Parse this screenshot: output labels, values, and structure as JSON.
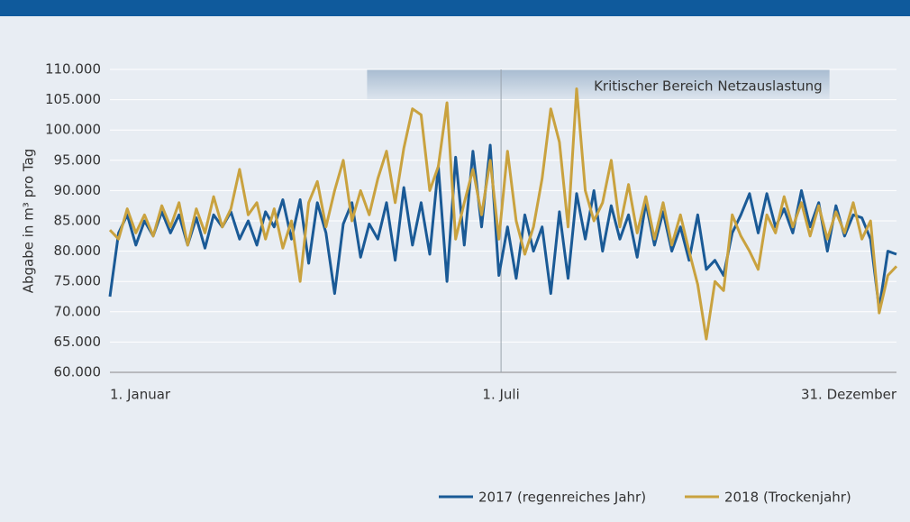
{
  "chart_data": {
    "type": "line",
    "y_label": "Abgabe in m³ pro Tag",
    "annotation": {
      "text": "Kritischer Bereich Netzauslastung",
      "x_range": [
        120,
        334
      ],
      "y_range": [
        105000,
        110000
      ]
    },
    "x": [
      1,
      5,
      9,
      13,
      17,
      21,
      25,
      29,
      33,
      37,
      41,
      45,
      49,
      53,
      57,
      61,
      65,
      69,
      73,
      77,
      81,
      85,
      89,
      93,
      97,
      101,
      105,
      109,
      113,
      117,
      121,
      125,
      129,
      133,
      137,
      141,
      145,
      149,
      153,
      157,
      161,
      165,
      169,
      173,
      177,
      181,
      185,
      189,
      193,
      197,
      201,
      205,
      209,
      213,
      217,
      221,
      225,
      229,
      233,
      237,
      241,
      245,
      249,
      253,
      257,
      261,
      265,
      269,
      273,
      277,
      281,
      285,
      289,
      293,
      297,
      301,
      305,
      309,
      313,
      317,
      321,
      325,
      329,
      333,
      337,
      341,
      345,
      349,
      353,
      357,
      361,
      365
    ],
    "xlim": [
      1,
      365
    ],
    "xticks": [
      {
        "value": 1,
        "label": "1. Januar"
      },
      {
        "value": 182,
        "label": "1. Juli"
      },
      {
        "value": 365,
        "label": "31. Dezember"
      }
    ],
    "ylim": [
      60000,
      110000
    ],
    "yticks": [
      {
        "value": 60000,
        "label": "60.000"
      },
      {
        "value": 65000,
        "label": "65.000"
      },
      {
        "value": 70000,
        "label": "70.000"
      },
      {
        "value": 75000,
        "label": "75.000"
      },
      {
        "value": 80000,
        "label": "80.000"
      },
      {
        "value": 85000,
        "label": "85.000"
      },
      {
        "value": 90000,
        "label": "90.000"
      },
      {
        "value": 95000,
        "label": "95.000"
      },
      {
        "value": 100000,
        "label": "100.000"
      },
      {
        "value": 105000,
        "label": "105.000"
      },
      {
        "value": 110000,
        "label": "110.000"
      }
    ],
    "grid": true,
    "series": [
      {
        "name": "2017 (regenreiches Jahr)",
        "color": "#1a5a96",
        "values": [
          72500,
          83000,
          86000,
          81000,
          85000,
          82500,
          86500,
          83000,
          86000,
          81000,
          85500,
          80500,
          86000,
          84000,
          86500,
          82000,
          85000,
          81000,
          86500,
          84000,
          88500,
          82000,
          88500,
          78000,
          88000,
          83000,
          73000,
          84500,
          88000,
          79000,
          84500,
          82000,
          88000,
          78500,
          90500,
          81000,
          88000,
          79500,
          94000,
          75000,
          95500,
          81000,
          96500,
          84000,
          97500,
          76000,
          84000,
          75500,
          86000,
          80000,
          84000,
          73000,
          86500,
          75500,
          89500,
          82000,
          90000,
          80000,
          87500,
          82000,
          86000,
          79000,
          88000,
          81000,
          86500,
          80000,
          84000,
          78500,
          86000,
          77000,
          78500,
          76000,
          83000,
          86000,
          89500,
          83000,
          89500,
          84000,
          87000,
          83000,
          90000,
          84000,
          88000,
          80000,
          87500,
          82500,
          86000,
          85500,
          82000,
          70500,
          80000,
          79500
        ]
      },
      {
        "name": "2018 (Trockenjahr)",
        "color": "#c9a23f",
        "values": [
          83500,
          82000,
          87000,
          83000,
          86000,
          82500,
          87500,
          84000,
          88000,
          81000,
          87000,
          83000,
          89000,
          84000,
          87000,
          93500,
          86000,
          88000,
          82000,
          87000,
          80500,
          85000,
          75000,
          88000,
          91500,
          84000,
          90000,
          95000,
          85000,
          90000,
          86000,
          92000,
          96500,
          88000,
          97000,
          103500,
          102500,
          90000,
          94000,
          104500,
          82000,
          88000,
          93500,
          86000,
          95000,
          82000,
          96500,
          85000,
          79500,
          84000,
          92000,
          103500,
          98000,
          84000,
          106800,
          90000,
          85000,
          88000,
          95000,
          84000,
          91000,
          83000,
          89000,
          82000,
          88000,
          81000,
          86000,
          80000,
          74500,
          65500,
          75000,
          73500,
          86000,
          82500,
          80000,
          77000,
          86000,
          83000,
          89000,
          84000,
          88000,
          82500,
          87500,
          82000,
          86500,
          83000,
          88000,
          82000,
          85000,
          69800,
          76000,
          77500
        ]
      }
    ]
  }
}
